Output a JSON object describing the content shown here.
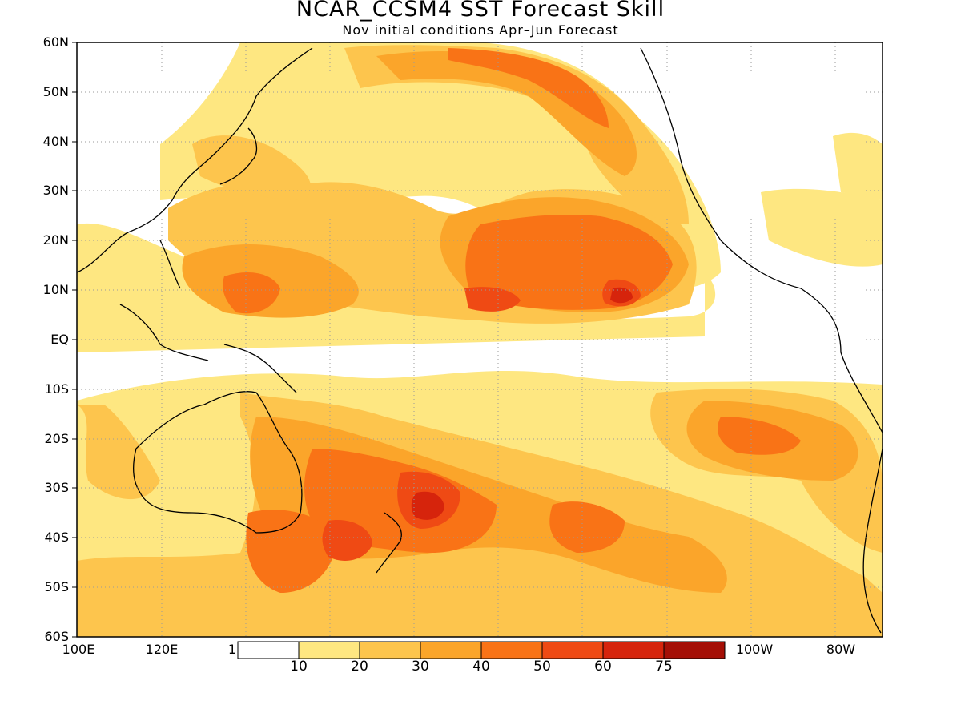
{
  "title": "NCAR_CCSM4 SST Forecast Skill",
  "subtitle": "Nov initial conditions  Apr–Jun Forecast",
  "y_ticks": [
    "60N",
    "50N",
    "40N",
    "30N",
    "20N",
    "10N",
    "EQ",
    "10S",
    "20S",
    "30S",
    "40S",
    "50S",
    "60S"
  ],
  "x_ticks": [
    "100E",
    "120E",
    "1",
    "100W",
    "80W"
  ],
  "colorbar": {
    "labels": [
      "10",
      "20",
      "30",
      "40",
      "50",
      "60",
      "75"
    ],
    "colors": [
      "#ffffff",
      "#fee781",
      "#fdc54d",
      "#fba52a",
      "#f97316",
      "#ef4a14",
      "#d6240c",
      "#a50f06"
    ]
  },
  "grid": true,
  "land_outline_color": "#000000"
}
